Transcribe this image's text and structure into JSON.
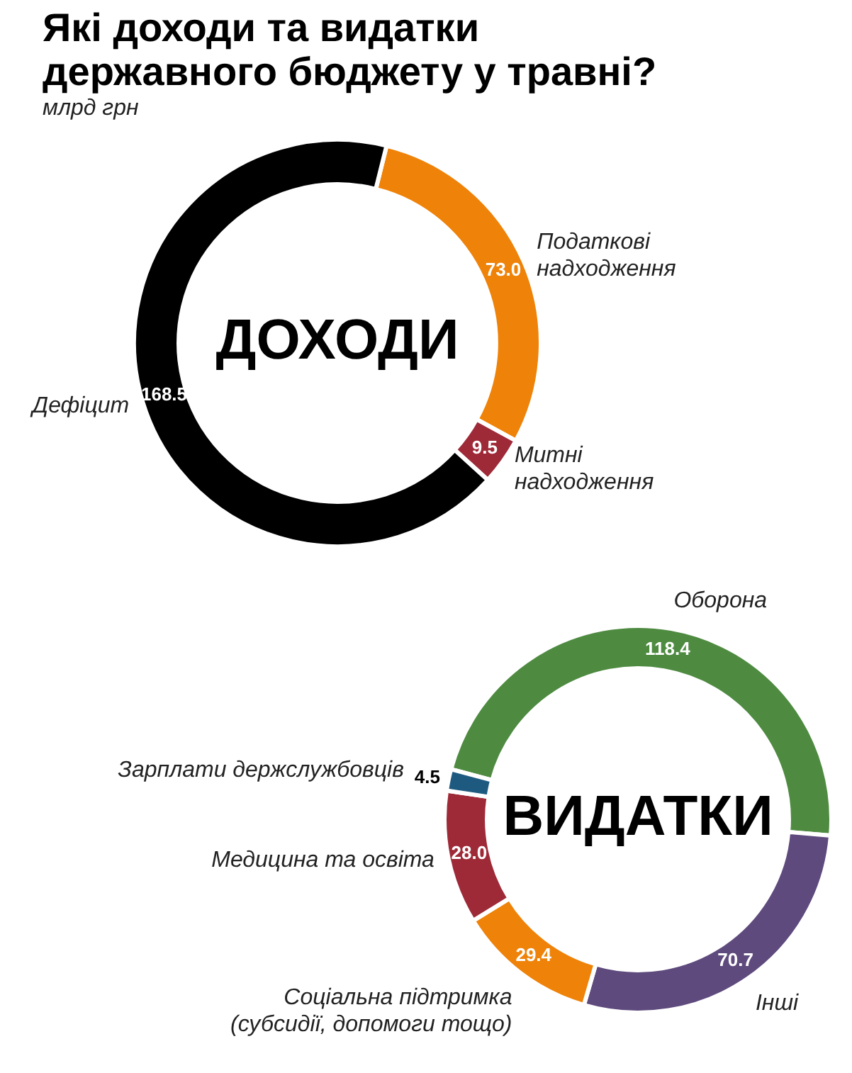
{
  "chart_data": [
    {
      "type": "donut",
      "title": "Які доходи та видатки державного бюджету у травні?",
      "subtitle": "млрд грн",
      "categories": [
        "Податкові надходження",
        "Митні надходження",
        "Дефіцит"
      ],
      "values": [
        73.0,
        9.5,
        168.5
      ],
      "value_labels": [
        "73.0",
        "9.5",
        "168.5"
      ],
      "colors": [
        "#ef8208",
        "#9e2a38",
        "#000000"
      ],
      "legend": false,
      "annotations": [
        "ДОХОДИ"
      ]
    },
    {
      "type": "donut",
      "categories": [
        "Оборона",
        "Інші",
        "Соціальна підтримка (субсидії, допомоги тощо)",
        "Медицина та освіта",
        "Зарплати держслужбовців"
      ],
      "values": [
        118.4,
        70.7,
        29.4,
        28.0,
        4.5
      ],
      "value_labels": [
        "118.4",
        "70.7",
        "29.4",
        "28.0",
        "4.5"
      ],
      "colors": [
        "#4e8b41",
        "#5e4a7d",
        "#ef8208",
        "#9e2a38",
        "#1e5a80"
      ],
      "legend": false,
      "annotations": [
        "ВИДАТКИ"
      ]
    }
  ]
}
